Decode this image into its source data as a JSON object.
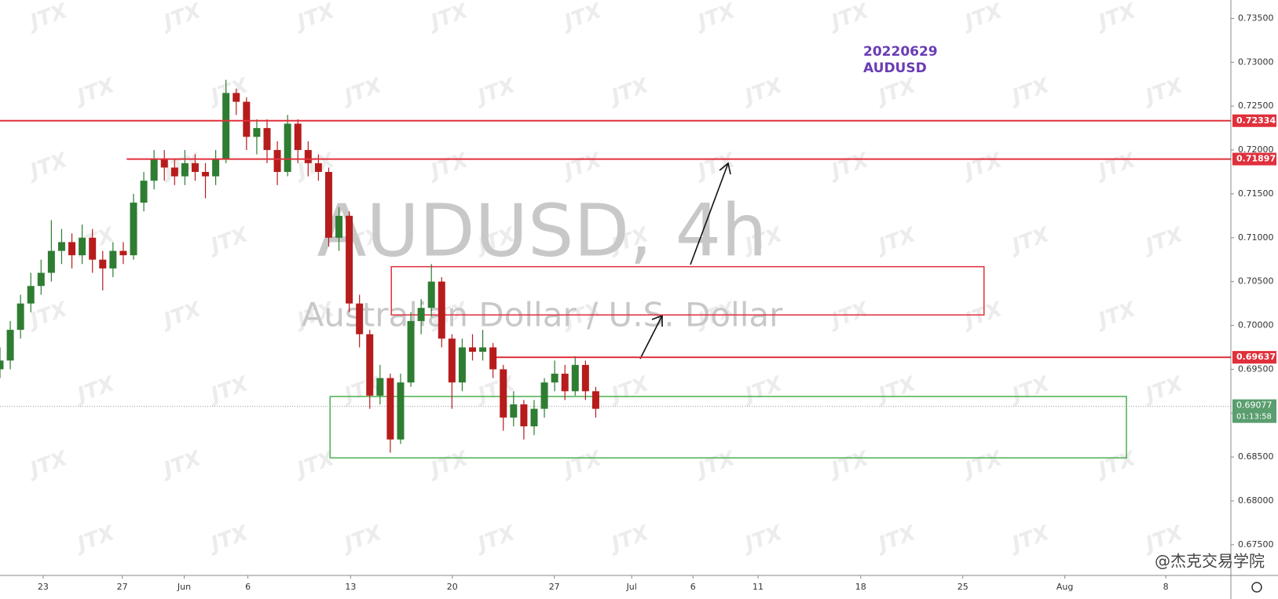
{
  "chart_data": {
    "type": "candlestick",
    "title": "AUDUSD, 4h",
    "subtitle": "Australian Dollar / U.S. Dollar",
    "annotations": [
      "20220629",
      "AUDUSD"
    ],
    "annotation_color": "#6a3cb5",
    "watermark": "JTX",
    "footer": "@杰克交易学院",
    "up_color": "#2e7d32",
    "down_color": "#b71c1c",
    "x": [
      0,
      3,
      6,
      9,
      12,
      15,
      18,
      21,
      24,
      27,
      30,
      33,
      36,
      39,
      42,
      45,
      48,
      51,
      54,
      57,
      60,
      63,
      66,
      69,
      72,
      75,
      78,
      81,
      84,
      87,
      90,
      93,
      96,
      99,
      102,
      105,
      108,
      111,
      114,
      117,
      120,
      123,
      126,
      129,
      132,
      135,
      138,
      141,
      144,
      147,
      150,
      153,
      156,
      159,
      162,
      165,
      168,
      171,
      174
    ],
    "open": [
      0.695,
      0.696,
      0.6995,
      0.7025,
      0.7045,
      0.706,
      0.7085,
      0.7095,
      0.708,
      0.71,
      0.7075,
      0.7065,
      0.7085,
      0.708,
      0.714,
      0.7165,
      0.719,
      0.718,
      0.717,
      0.7185,
      0.7175,
      0.717,
      0.719,
      0.7265,
      0.7255,
      0.7215,
      0.7225,
      0.72,
      0.7175,
      0.723,
      0.72,
      0.7185,
      0.7175,
      0.71,
      0.7125,
      0.7025,
      0.699,
      0.692,
      0.694,
      0.687,
      0.6935,
      0.7005,
      0.702,
      0.705,
      0.6985,
      0.6935,
      0.6975,
      0.697,
      0.6975,
      0.695,
      0.6895,
      0.691,
      0.6885,
      0.6905,
      0.6935,
      0.6945,
      0.6925,
      0.6955,
      0.6925
    ],
    "high": [
      0.6975,
      0.7005,
      0.7035,
      0.706,
      0.7075,
      0.712,
      0.711,
      0.7105,
      0.7115,
      0.711,
      0.7085,
      0.7095,
      0.7095,
      0.715,
      0.7175,
      0.72,
      0.72,
      0.719,
      0.72,
      0.7195,
      0.7185,
      0.72,
      0.728,
      0.727,
      0.726,
      0.7235,
      0.7235,
      0.721,
      0.724,
      0.7235,
      0.721,
      0.7195,
      0.718,
      0.7135,
      0.713,
      0.7035,
      0.6995,
      0.6955,
      0.6945,
      0.6945,
      0.7015,
      0.703,
      0.707,
      0.7055,
      0.699,
      0.6985,
      0.699,
      0.6995,
      0.698,
      0.6955,
      0.6925,
      0.6915,
      0.6915,
      0.694,
      0.696,
      0.6955,
      0.6965,
      0.696,
      0.693
    ],
    "low": [
      0.694,
      0.695,
      0.6985,
      0.7015,
      0.7035,
      0.705,
      0.707,
      0.7065,
      0.707,
      0.706,
      0.704,
      0.7055,
      0.707,
      0.7075,
      0.713,
      0.7155,
      0.7165,
      0.716,
      0.716,
      0.7165,
      0.7145,
      0.716,
      0.7185,
      0.724,
      0.72,
      0.7195,
      0.7185,
      0.716,
      0.717,
      0.7185,
      0.717,
      0.7165,
      0.709,
      0.7085,
      0.7015,
      0.6975,
      0.6905,
      0.691,
      0.6855,
      0.6865,
      0.693,
      0.699,
      0.701,
      0.6975,
      0.6905,
      0.6925,
      0.696,
      0.696,
      0.694,
      0.688,
      0.6885,
      0.687,
      0.6875,
      0.6895,
      0.6925,
      0.6915,
      0.692,
      0.6915,
      0.6895
    ],
    "close": [
      0.696,
      0.6995,
      0.7025,
      0.7045,
      0.706,
      0.7085,
      0.7095,
      0.708,
      0.71,
      0.7075,
      0.7065,
      0.7085,
      0.708,
      0.714,
      0.7165,
      0.719,
      0.718,
      0.717,
      0.7185,
      0.7175,
      0.717,
      0.719,
      0.7265,
      0.7255,
      0.7215,
      0.7225,
      0.72,
      0.7175,
      0.723,
      0.72,
      0.7185,
      0.7175,
      0.71,
      0.7125,
      0.7025,
      0.699,
      0.692,
      0.694,
      0.687,
      0.6935,
      0.7005,
      0.702,
      0.705,
      0.6985,
      0.6935,
      0.6975,
      0.697,
      0.6975,
      0.695,
      0.6895,
      0.691,
      0.6885,
      0.6905,
      0.6935,
      0.6945,
      0.6925,
      0.6955,
      0.6925,
      0.6905
    ],
    "xlim": [
      0,
      359.5
    ],
    "xticks": [
      {
        "value": 12.6,
        "label": "23"
      },
      {
        "value": 35.7,
        "label": "27"
      },
      {
        "value": 53.8,
        "label": "Jun"
      },
      {
        "value": 72.4,
        "label": "6"
      },
      {
        "value": 102.4,
        "label": "13"
      },
      {
        "value": 132.1,
        "label": "20"
      },
      {
        "value": 161.9,
        "label": "27"
      },
      {
        "value": 184.5,
        "label": "Jul"
      },
      {
        "value": 202.4,
        "label": "6"
      },
      {
        "value": 221.4,
        "label": "11"
      },
      {
        "value": 251.4,
        "label": "18"
      },
      {
        "value": 281.2,
        "label": "25"
      },
      {
        "value": 311,
        "label": "Aug"
      },
      {
        "value": 340.5,
        "label": "8"
      }
    ],
    "ylim": [
      0.6715,
      0.7371
    ],
    "yticks": [
      {
        "value": 0.735,
        "label": "0.73500"
      },
      {
        "value": 0.73,
        "label": "0.73000"
      },
      {
        "value": 0.725,
        "label": "0.72500"
      },
      {
        "value": 0.72,
        "label": "0.72000"
      },
      {
        "value": 0.715,
        "label": "0.71500"
      },
      {
        "value": 0.71,
        "label": "0.71000"
      },
      {
        "value": 0.705,
        "label": "0.70500"
      },
      {
        "value": 0.7,
        "label": "0.70000"
      },
      {
        "value": 0.695,
        "label": "0.69500"
      },
      {
        "value": 0.69,
        "label": "0.69000"
      },
      {
        "value": 0.685,
        "label": "0.68500"
      },
      {
        "value": 0.68,
        "label": "0.68000"
      },
      {
        "value": 0.675,
        "label": "0.67500"
      }
    ],
    "hlines": [
      {
        "value": 0.72334,
        "x_start": 0,
        "color": "#e0303c"
      },
      {
        "value": 0.71897,
        "x_start": 37,
        "color": "#e0303c"
      },
      {
        "value": 0.69637,
        "x_start": 145,
        "color": "#e0303c"
      }
    ],
    "last_price": {
      "value": 0.69077,
      "countdown": "01:13:58",
      "color": "#5a9e6f"
    },
    "zones": [
      {
        "x": [
          114.3,
          287.4
        ],
        "y": [
          0.7012,
          0.7067
        ],
        "color": "#e0303c"
      },
      {
        "x": [
          96.4,
          329
        ],
        "y": [
          0.6849,
          0.6919
        ],
        "color": "#4caf50"
      }
    ]
  }
}
